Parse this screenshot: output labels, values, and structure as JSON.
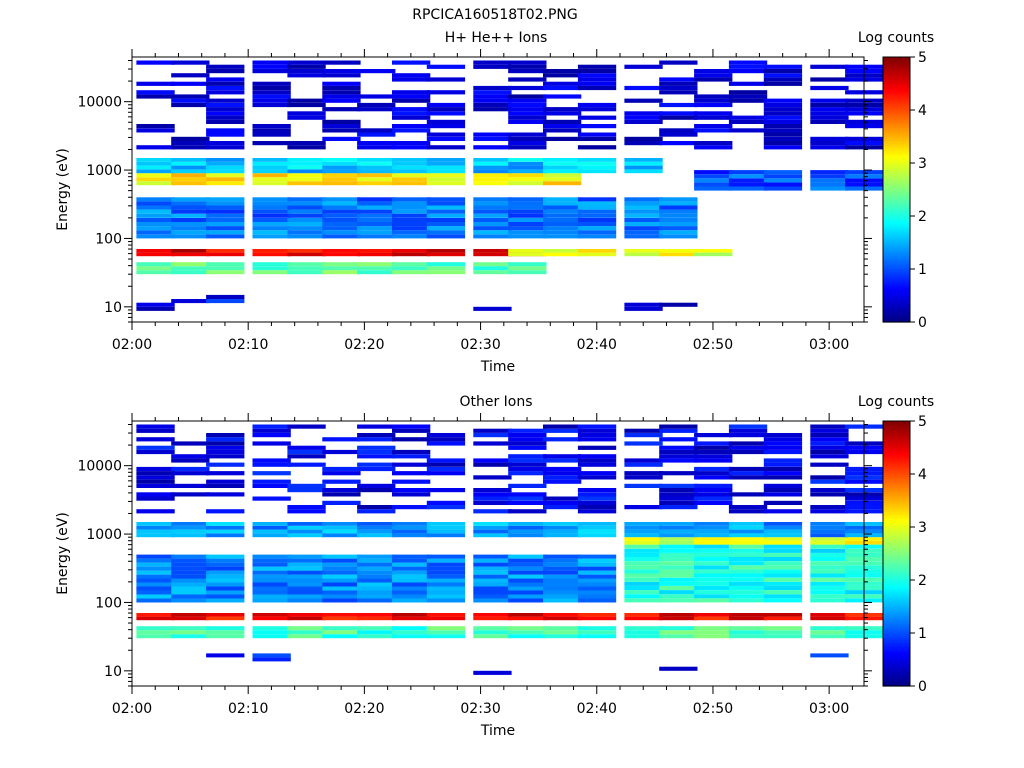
{
  "page_title": "RPCICA160518T02.PNG",
  "chart_data": [
    {
      "type": "heatmap",
      "title": "H+ He++ Ions",
      "xlabel": "Time",
      "ylabel": "Energy (eV)",
      "colorbar_label": "Log counts",
      "y_scale": "log",
      "ylim": [
        6,
        45000
      ],
      "xlim": [
        "02:00",
        "03:03"
      ],
      "x_ticks": [
        "02:00",
        "02:10",
        "02:20",
        "02:30",
        "02:40",
        "02:50",
        "03:00"
      ],
      "y_ticks": [
        "10",
        "100",
        "1000",
        "10000"
      ],
      "colorbar_ticks": [
        "0",
        "1",
        "2",
        "3",
        "4",
        "5"
      ],
      "zlim": [
        0,
        5
      ],
      "colormap": "jet",
      "time_bins": [
        "02:02",
        "02:05",
        "02:08",
        "02:12",
        "02:15",
        "02:18",
        "02:21",
        "02:24",
        "02:27",
        "02:31",
        "02:34",
        "02:37",
        "02:40",
        "02:44",
        "02:47",
        "02:50",
        "02:53",
        "02:56",
        "03:00",
        "03:03"
      ],
      "bands": [
        {
          "energy_eV": [
            10,
            10
          ],
          "log_counts": 0.3,
          "times": [
            "02:02",
            "02:31",
            "02:44",
            "02:47"
          ]
        },
        {
          "energy_eV": [
            13,
            13
          ],
          "log_counts": 0.6,
          "times": [
            "02:05",
            "02:08"
          ]
        },
        {
          "energy_eV": [
            30,
            45
          ],
          "log_counts": 2.3,
          "times": "02:02-02:34"
        },
        {
          "energy_eV": [
            55,
            70
          ],
          "log_counts": 4.5,
          "times": "02:02-02:34"
        },
        {
          "energy_eV": [
            55,
            70
          ],
          "log_counts": 3.0,
          "times": "02:34-02:50"
        },
        {
          "energy_eV": [
            100,
            400
          ],
          "log_counts": 1.2,
          "times": "02:02-02:47"
        },
        {
          "energy_eV": [
            600,
            900
          ],
          "log_counts": 3.2,
          "times": "02:02-02:37"
        },
        {
          "energy_eV": [
            900,
            1500
          ],
          "log_counts": 1.6,
          "times": "02:02-02:44"
        },
        {
          "energy_eV": [
            500,
            1000
          ],
          "log_counts": 1.0,
          "times": "02:50-03:03"
        },
        {
          "energy_eV": [
            2000,
            40000
          ],
          "log_counts": 0.4,
          "times": "02:02-03:03"
        }
      ]
    },
    {
      "type": "heatmap",
      "title": "Other Ions",
      "xlabel": "Time",
      "ylabel": "Energy (eV)",
      "colorbar_label": "Log counts",
      "y_scale": "log",
      "ylim": [
        6,
        45000
      ],
      "xlim": [
        "02:00",
        "03:03"
      ],
      "x_ticks": [
        "02:00",
        "02:10",
        "02:20",
        "02:30",
        "02:40",
        "02:50",
        "03:00"
      ],
      "y_ticks": [
        "10",
        "100",
        "1000",
        "10000"
      ],
      "colorbar_ticks": [
        "0",
        "1",
        "2",
        "3",
        "4",
        "5"
      ],
      "zlim": [
        0,
        5
      ],
      "colormap": "jet",
      "time_bins": [
        "02:02",
        "02:05",
        "02:08",
        "02:12",
        "02:15",
        "02:18",
        "02:21",
        "02:24",
        "02:27",
        "02:31",
        "02:34",
        "02:37",
        "02:40",
        "02:44",
        "02:47",
        "02:50",
        "02:53",
        "02:56",
        "03:00",
        "03:03"
      ],
      "bands": [
        {
          "energy_eV": [
            10,
            10
          ],
          "log_counts": 0.3,
          "times": [
            "02:31",
            "02:44",
            "02:47"
          ]
        },
        {
          "energy_eV": [
            12,
            18
          ],
          "log_counts": 0.6,
          "times": [
            "02:08",
            "02:12",
            "03:00"
          ]
        },
        {
          "energy_eV": [
            30,
            45
          ],
          "log_counts": 2.2,
          "times": "02:02-03:03"
        },
        {
          "energy_eV": [
            55,
            70
          ],
          "log_counts": 4.4,
          "times": "02:02-03:03"
        },
        {
          "energy_eV": [
            100,
            500
          ],
          "log_counts": 1.3,
          "times": "02:02-02:40"
        },
        {
          "energy_eV": [
            100,
            700
          ],
          "log_counts": 2.0,
          "times": "02:44-03:03"
        },
        {
          "energy_eV": [
            700,
            900
          ],
          "log_counts": 3.0,
          "times": "02:44-03:03"
        },
        {
          "energy_eV": [
            900,
            1500
          ],
          "log_counts": 1.4,
          "times": "02:02-03:03"
        },
        {
          "energy_eV": [
            2000,
            40000
          ],
          "log_counts": 0.5,
          "times": "02:02-03:03"
        }
      ]
    }
  ]
}
